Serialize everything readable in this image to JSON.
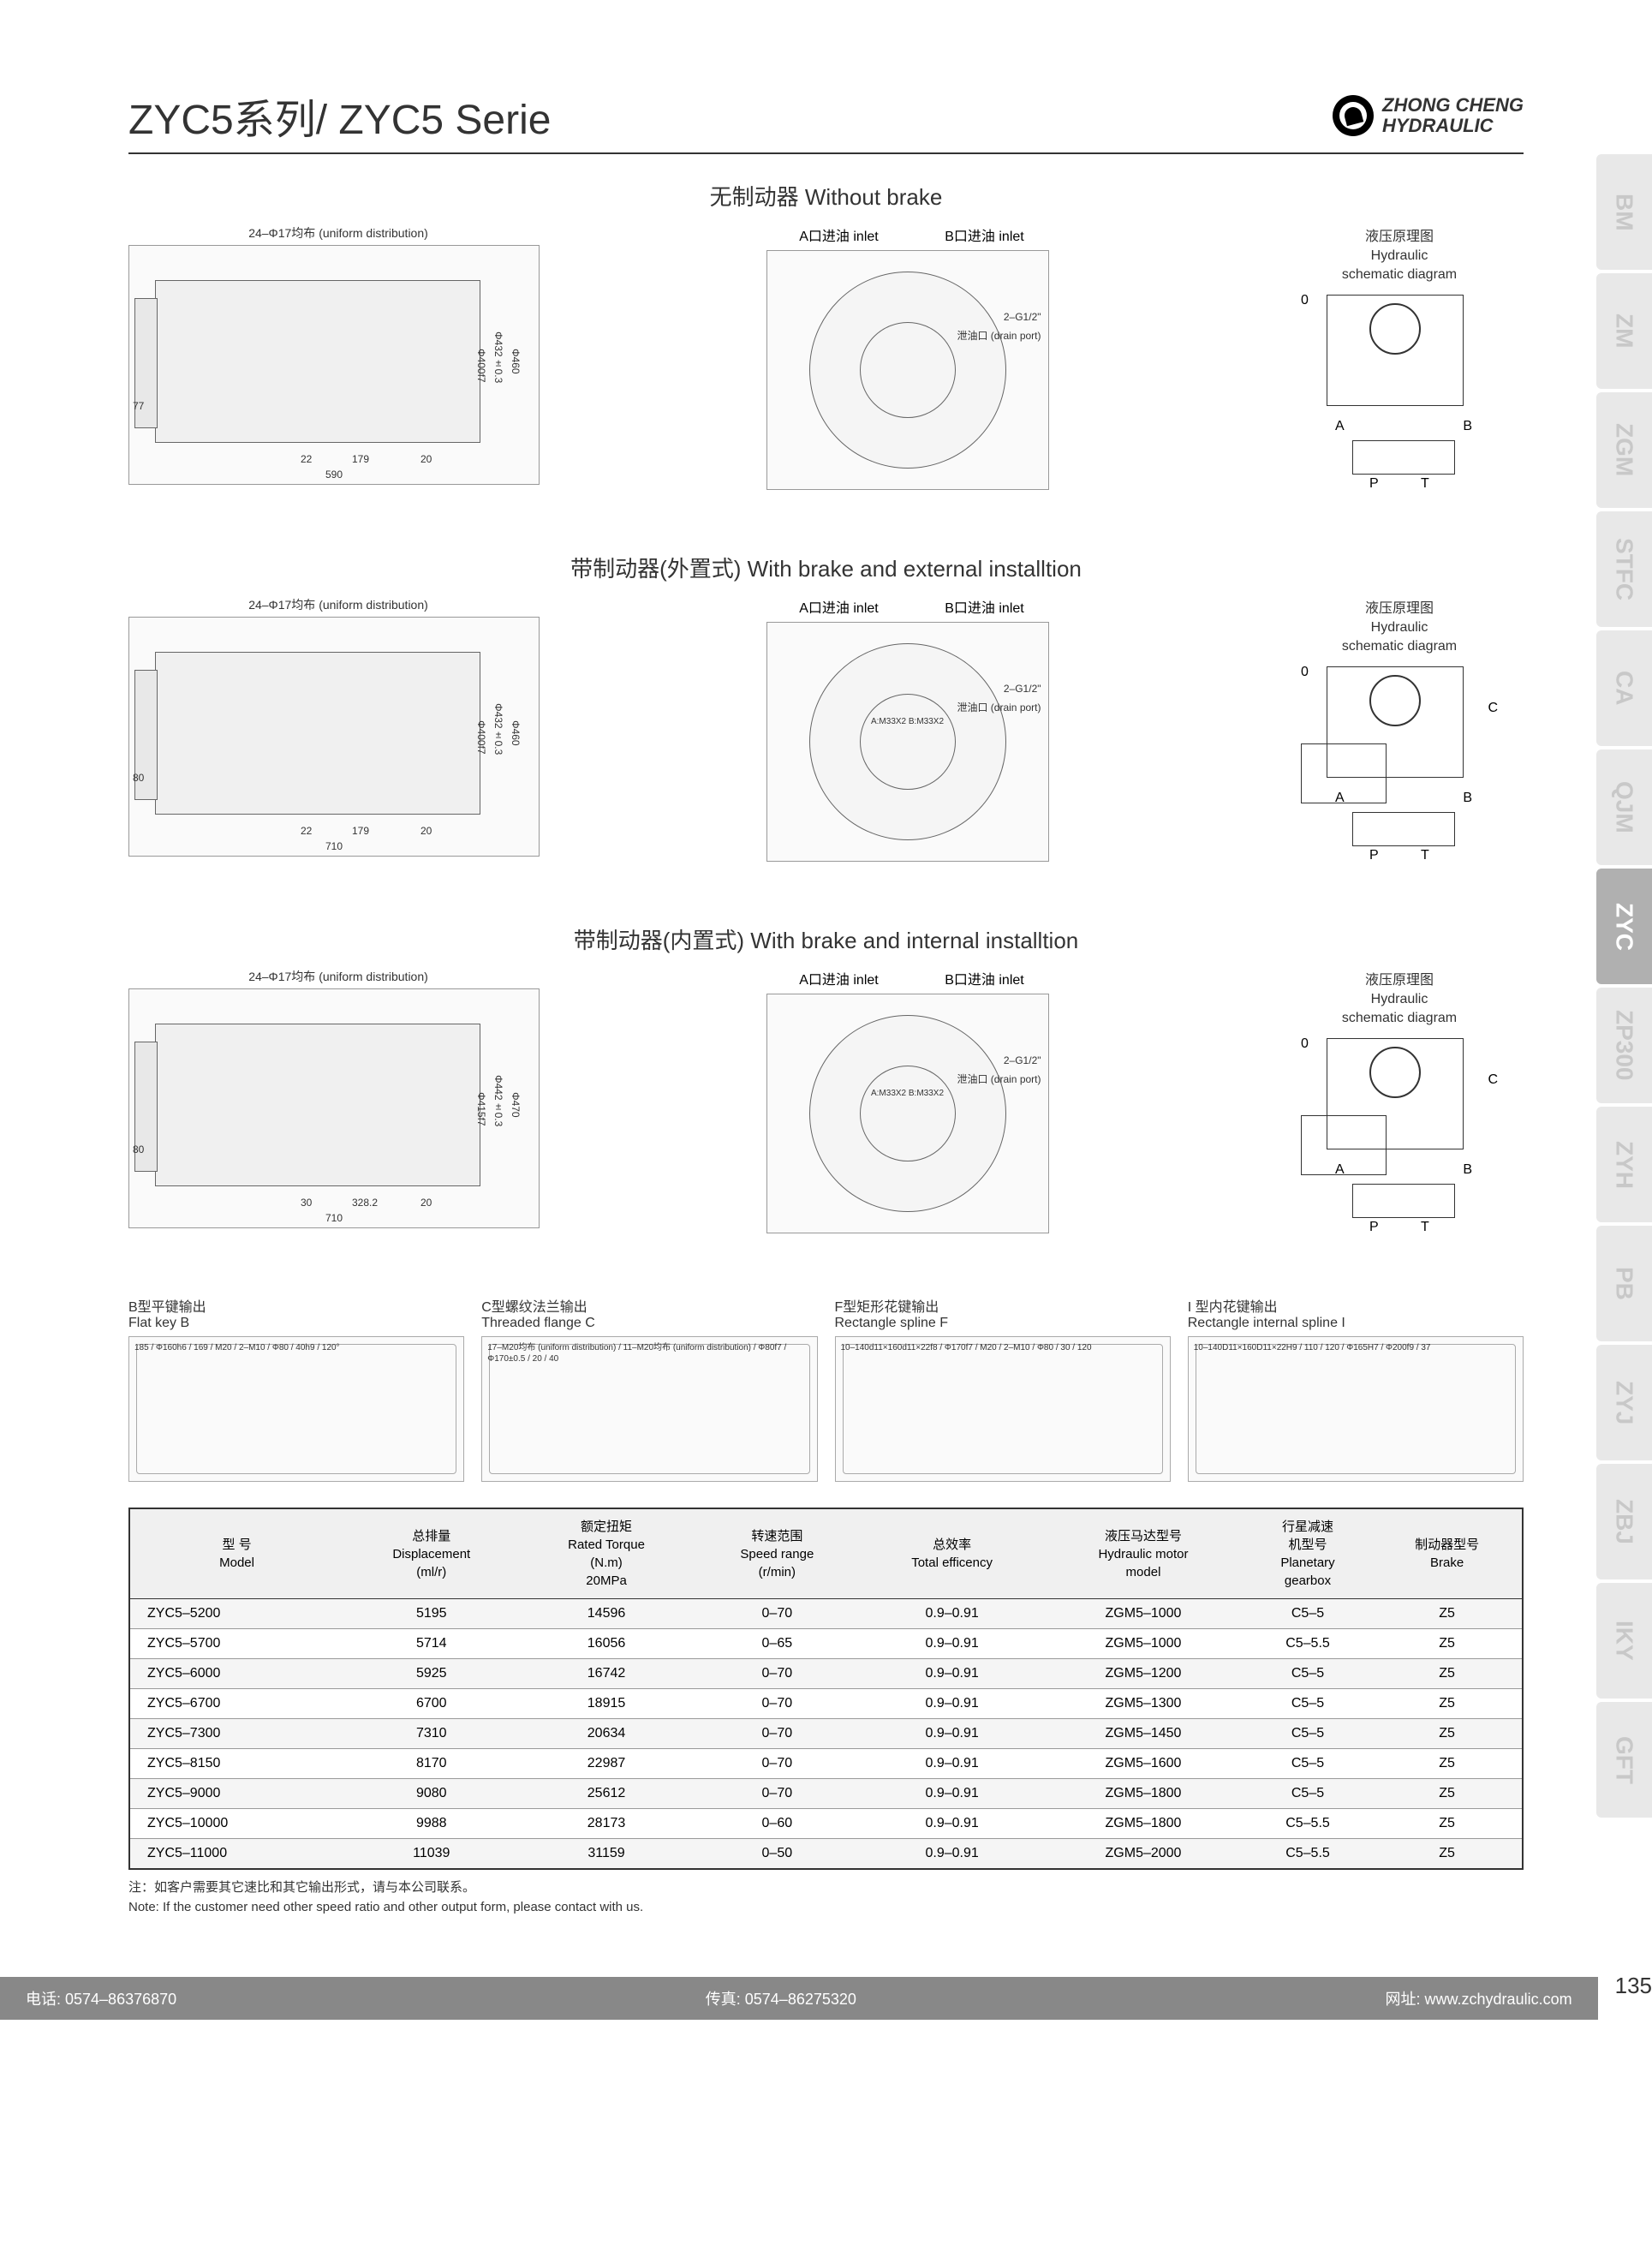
{
  "header": {
    "title": "ZYC5系列/ ZYC5 Serie",
    "logo_line1": "ZHONG CHENG",
    "logo_line2": "HYDRAULIC"
  },
  "side_tabs": [
    {
      "label": "BM",
      "active": false
    },
    {
      "label": "ZM",
      "active": false
    },
    {
      "label": "ZGM",
      "active": false
    },
    {
      "label": "STFC",
      "active": false
    },
    {
      "label": "CA",
      "active": false
    },
    {
      "label": "QJM",
      "active": false
    },
    {
      "label": "ZYC",
      "active": true
    },
    {
      "label": "ZP300",
      "active": false
    },
    {
      "label": "ZYH",
      "active": false
    },
    {
      "label": "PB",
      "active": false
    },
    {
      "label": "ZYJ",
      "active": false
    },
    {
      "label": "ZBJ",
      "active": false
    },
    {
      "label": "IKY",
      "active": false
    },
    {
      "label": "GFT",
      "active": false
    }
  ],
  "sections": [
    {
      "title": "无制动器 Without brake",
      "dist_label": "24–Φ17均布  (uniform distribution)",
      "inlet_a": "A口进油 inlet",
      "inlet_b": "B口进油  inlet",
      "port_label": "2–G1/2\"",
      "drain_label": "泄油口 (drain port)",
      "schematic_title_cn": "液压原理图",
      "schematic_title_en1": "Hydraulic",
      "schematic_title_en2": "schematic diagram",
      "dims": {
        "width": "590",
        "seg1": "22",
        "seg2": "179",
        "seg3": "20",
        "h1": "77",
        "d1": "Φ400f7",
        "d2": "Φ432±0.3",
        "d3": "Φ460"
      }
    },
    {
      "title": "带制动器(外置式) With brake and external installtion",
      "dist_label": "24–Φ17均布  (uniform distribution)",
      "inlet_a": "A口进油 inlet",
      "inlet_b": "B口进油  inlet",
      "port_label": "2–G1/2\"",
      "drain_label": "泄油口 (drain port)",
      "schematic_title_cn": "液压原理图",
      "schematic_title_en1": "Hydraulic",
      "schematic_title_en2": "schematic diagram",
      "dims": {
        "width": "710",
        "seg1": "22",
        "seg2": "179",
        "seg3": "20",
        "h1": "80",
        "d1": "Φ400f7",
        "d2": "Φ432±0.3",
        "d3": "Φ460",
        "port_m": "A:M33X2  B:M33X2"
      }
    },
    {
      "title": "带制动器(内置式) With brake and internal installtion",
      "dist_label": "24–Φ17均布  (uniform distribution)",
      "inlet_a": "A口进油 inlet",
      "inlet_b": "B口进油  inlet",
      "port_label": "2–G1/2\"",
      "drain_label": "泄油口 (drain port)",
      "schematic_title_cn": "液压原理图",
      "schematic_title_en1": "Hydraulic",
      "schematic_title_en2": "schematic diagram",
      "dims": {
        "width": "710",
        "seg1": "30",
        "seg2": "328.2",
        "seg3": "20",
        "h1": "80",
        "d1": "Φ415f7",
        "d2": "Φ442±0.3",
        "d3": "Φ470",
        "port_m": "A:M33X2  B:M33X2"
      }
    }
  ],
  "outputs": [
    {
      "title_cn": "B型平键输出",
      "title_en": "Flat key B",
      "dims": "185 / Φ160h6 / 169 / M20 / 2–M10 / Φ80 / 40h9 / 120°"
    },
    {
      "title_cn": "C型螺纹法兰输出",
      "title_en": "Threaded flange C",
      "dims": "17–M20均布 (uniform distribution) / 11–M20均布 (uniform distribution) / Φ80f7 / Φ170±0.5 / 20 / 40"
    },
    {
      "title_cn": "F型矩形花键输出",
      "title_en": "Rectangle spline F",
      "dims": "10–140d11×160d11×22f8 / Φ170f7 / M20 / 2–M10 / Φ80 / 30 / 120"
    },
    {
      "title_cn": "I 型内花键输出",
      "title_en": "Rectangle internal spline I",
      "dims": "10–140D11×160D11×22H9 / 110 / 120 / Φ165H7 / Φ200f9 / 37"
    }
  ],
  "table": {
    "headers": [
      {
        "cn": "型  号",
        "en": "Model"
      },
      {
        "cn": "总排量",
        "en": "Displacement",
        "unit": "(ml/r)"
      },
      {
        "cn": "额定扭矩",
        "en": "Rated Torque",
        "unit": "(N.m)",
        "unit2": "20MPa"
      },
      {
        "cn": "转速范围",
        "en": "Speed range",
        "unit": "(r/min)"
      },
      {
        "cn": "总效率",
        "en": "Total efficency"
      },
      {
        "cn": "液压马达型号",
        "en": "Hydraulic motor",
        "unit": "model"
      },
      {
        "cn": "行星减速",
        "cn2": "机型号",
        "en": "Planetary",
        "unit": "gearbox"
      },
      {
        "cn": "制动器型号",
        "en": "Brake"
      }
    ],
    "rows": [
      [
        "ZYC5–5200",
        "5195",
        "14596",
        "0–70",
        "0.9–0.91",
        "ZGM5–1000",
        "C5–5",
        "Z5"
      ],
      [
        "ZYC5–5700",
        "5714",
        "16056",
        "0–65",
        "0.9–0.91",
        "ZGM5–1000",
        "C5–5.5",
        "Z5"
      ],
      [
        "ZYC5–6000",
        "5925",
        "16742",
        "0–70",
        "0.9–0.91",
        "ZGM5–1200",
        "C5–5",
        "Z5"
      ],
      [
        "ZYC5–6700",
        "6700",
        "18915",
        "0–70",
        "0.9–0.91",
        "ZGM5–1300",
        "C5–5",
        "Z5"
      ],
      [
        "ZYC5–7300",
        "7310",
        "20634",
        "0–70",
        "0.9–0.91",
        "ZGM5–1450",
        "C5–5",
        "Z5"
      ],
      [
        "ZYC5–8150",
        "8170",
        "22987",
        "0–70",
        "0.9–0.91",
        "ZGM5–1600",
        "C5–5",
        "Z5"
      ],
      [
        "ZYC5–9000",
        "9080",
        "25612",
        "0–70",
        "0.9–0.91",
        "ZGM5–1800",
        "C5–5",
        "Z5"
      ],
      [
        "ZYC5–10000",
        "9988",
        "28173",
        "0–60",
        "0.9–0.91",
        "ZGM5–1800",
        "C5–5.5",
        "Z5"
      ],
      [
        "ZYC5–11000",
        "11039",
        "31159",
        "0–50",
        "0.9–0.91",
        "ZGM5–2000",
        "C5–5.5",
        "Z5"
      ]
    ]
  },
  "note_cn": "注：如客户需要其它速比和其它输出形式，请与本公司联系。",
  "note_en": "Note: If the customer need other speed ratio and other output form, please contact with us.",
  "footer": {
    "tel": "电话: 0574–86376870",
    "fax": "传真: 0574–86275320",
    "web": "网址: www.zchydraulic.com",
    "page": "135"
  },
  "schematic_labels": {
    "o": "0",
    "a": "A",
    "b": "B",
    "c": "C",
    "p": "P",
    "t": "T"
  }
}
